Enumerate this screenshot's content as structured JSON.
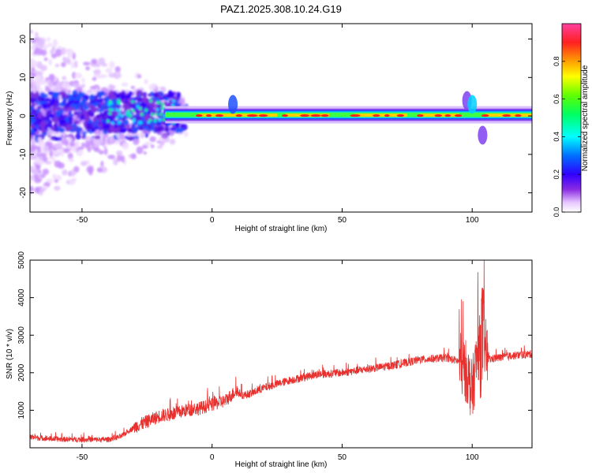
{
  "title": "PAZ1.2025.308.10.24.G19",
  "chart_data": [
    {
      "type": "heatmap",
      "title": "PAZ1.2025.308.10.24.G19",
      "xlabel": "Height of straight line (km)",
      "ylabel": "Frequency (Hz)",
      "xlim": [
        -70,
        123
      ],
      "ylim": [
        -25,
        24
      ],
      "xticks": [
        -50,
        0,
        50,
        100
      ],
      "yticks": [
        20,
        10,
        0,
        -10,
        -20
      ],
      "colorbar": {
        "label": "Normalized spectral amplitude",
        "range": [
          0,
          1
        ],
        "ticks": [
          "0.0",
          "0.2",
          "0.4",
          "0.6",
          "0.8"
        ],
        "colormap": "rainbow"
      },
      "ridge": {
        "description_x": [
          -70,
          -40,
          -20,
          -10,
          0,
          20,
          50,
          80,
          95,
          100,
          105,
          123
        ],
        "center_freq": [
          1.0,
          1.5,
          1.0,
          0.5,
          0.0,
          0.0,
          0.0,
          0.0,
          0.0,
          0.0,
          0.0,
          0.0
        ]
      },
      "grid": false
    },
    {
      "type": "line",
      "xlabel": "Height of straight line (km)",
      "ylabel": "SNR (10 * v/v)",
      "xlim": [
        -70,
        123
      ],
      "ylim": [
        0,
        5000
      ],
      "xticks": [
        -50,
        0,
        50,
        100
      ],
      "yticks": [
        1000,
        2000,
        3000,
        4000,
        5000
      ],
      "color": "#e8302e",
      "series": [
        {
          "x": [
            -70,
            -60,
            -50,
            -40,
            -35,
            -30,
            -25,
            -20,
            -15,
            -10,
            -5,
            0,
            5,
            9,
            12,
            15,
            20,
            30,
            40,
            50,
            60,
            70,
            80,
            90,
            95,
            98,
            100,
            102,
            104,
            106,
            110,
            115,
            123
          ],
          "values": [
            280,
            230,
            220,
            220,
            300,
            550,
            700,
            850,
            900,
            1000,
            1050,
            1150,
            1250,
            1500,
            1400,
            1450,
            1600,
            1800,
            1950,
            2000,
            2100,
            2200,
            2350,
            2400,
            2300,
            2000,
            1500,
            2500,
            3000,
            2350,
            2400,
            2450,
            2500
          ]
        }
      ],
      "grid": false
    }
  ]
}
